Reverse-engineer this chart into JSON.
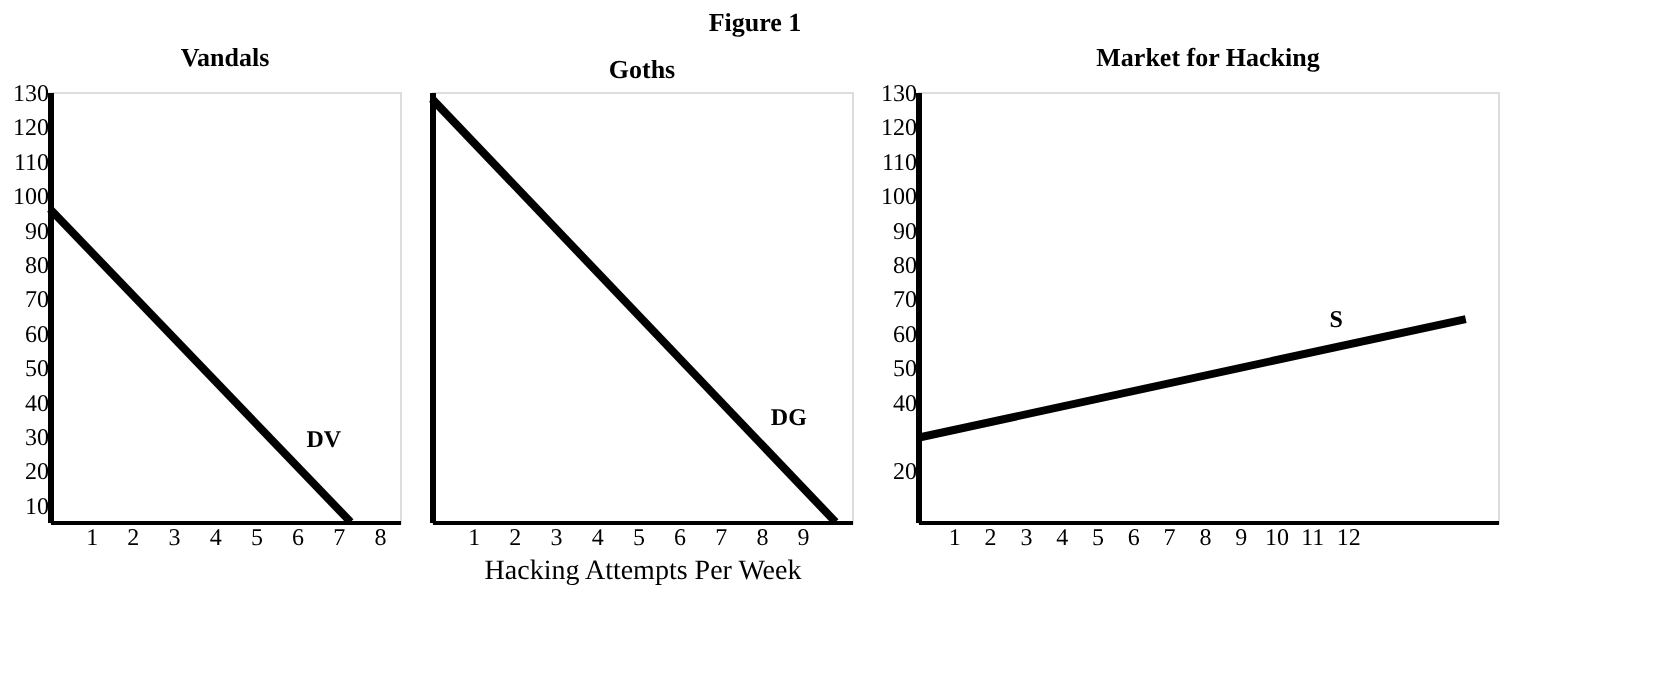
{
  "chart_data": [
    {
      "type": "line",
      "title": "Vandals",
      "annotations": [
        "Figure 1"
      ],
      "xlim": [
        0,
        8.5
      ],
      "xticks": [
        1,
        2,
        3,
        4,
        5,
        6,
        7,
        8
      ],
      "ylim": [
        5,
        130
      ],
      "yticks": [
        10,
        20,
        30,
        40,
        50,
        60,
        70,
        80,
        90,
        100,
        110,
        120,
        130
      ],
      "grid": false,
      "series": [
        {
          "name": "DV",
          "color": "#000000",
          "x": [
            0,
            7.3
          ],
          "values": [
            96,
            5
          ]
        }
      ]
    },
    {
      "type": "line",
      "title": "Goths",
      "xlabel": "Hacking Attempts Per Week",
      "xlim": [
        0,
        10.2
      ],
      "xticks": [
        1,
        2,
        3,
        4,
        5,
        6,
        7,
        8,
        9
      ],
      "ylim": [
        5,
        130
      ],
      "tick_labels": "x",
      "grid": false,
      "series": [
        {
          "name": "DG",
          "color": "#000000",
          "x": [
            0,
            9.8
          ],
          "values": [
            128,
            5
          ]
        }
      ]
    },
    {
      "type": "line",
      "title": "Market for Hacking",
      "xlim": [
        0,
        16.2
      ],
      "xticks": [
        1,
        2,
        3,
        4,
        5,
        6,
        7,
        8,
        9,
        10,
        11,
        12
      ],
      "ylim": [
        5,
        130
      ],
      "yticks": [
        20,
        40,
        50,
        60,
        70,
        80,
        90,
        100,
        110,
        120,
        130
      ],
      "grid": false,
      "series": [
        {
          "name": "S",
          "color": "#000000",
          "x": [
            0,
            15.3
          ],
          "values": [
            29.5,
            64
          ]
        }
      ]
    }
  ]
}
